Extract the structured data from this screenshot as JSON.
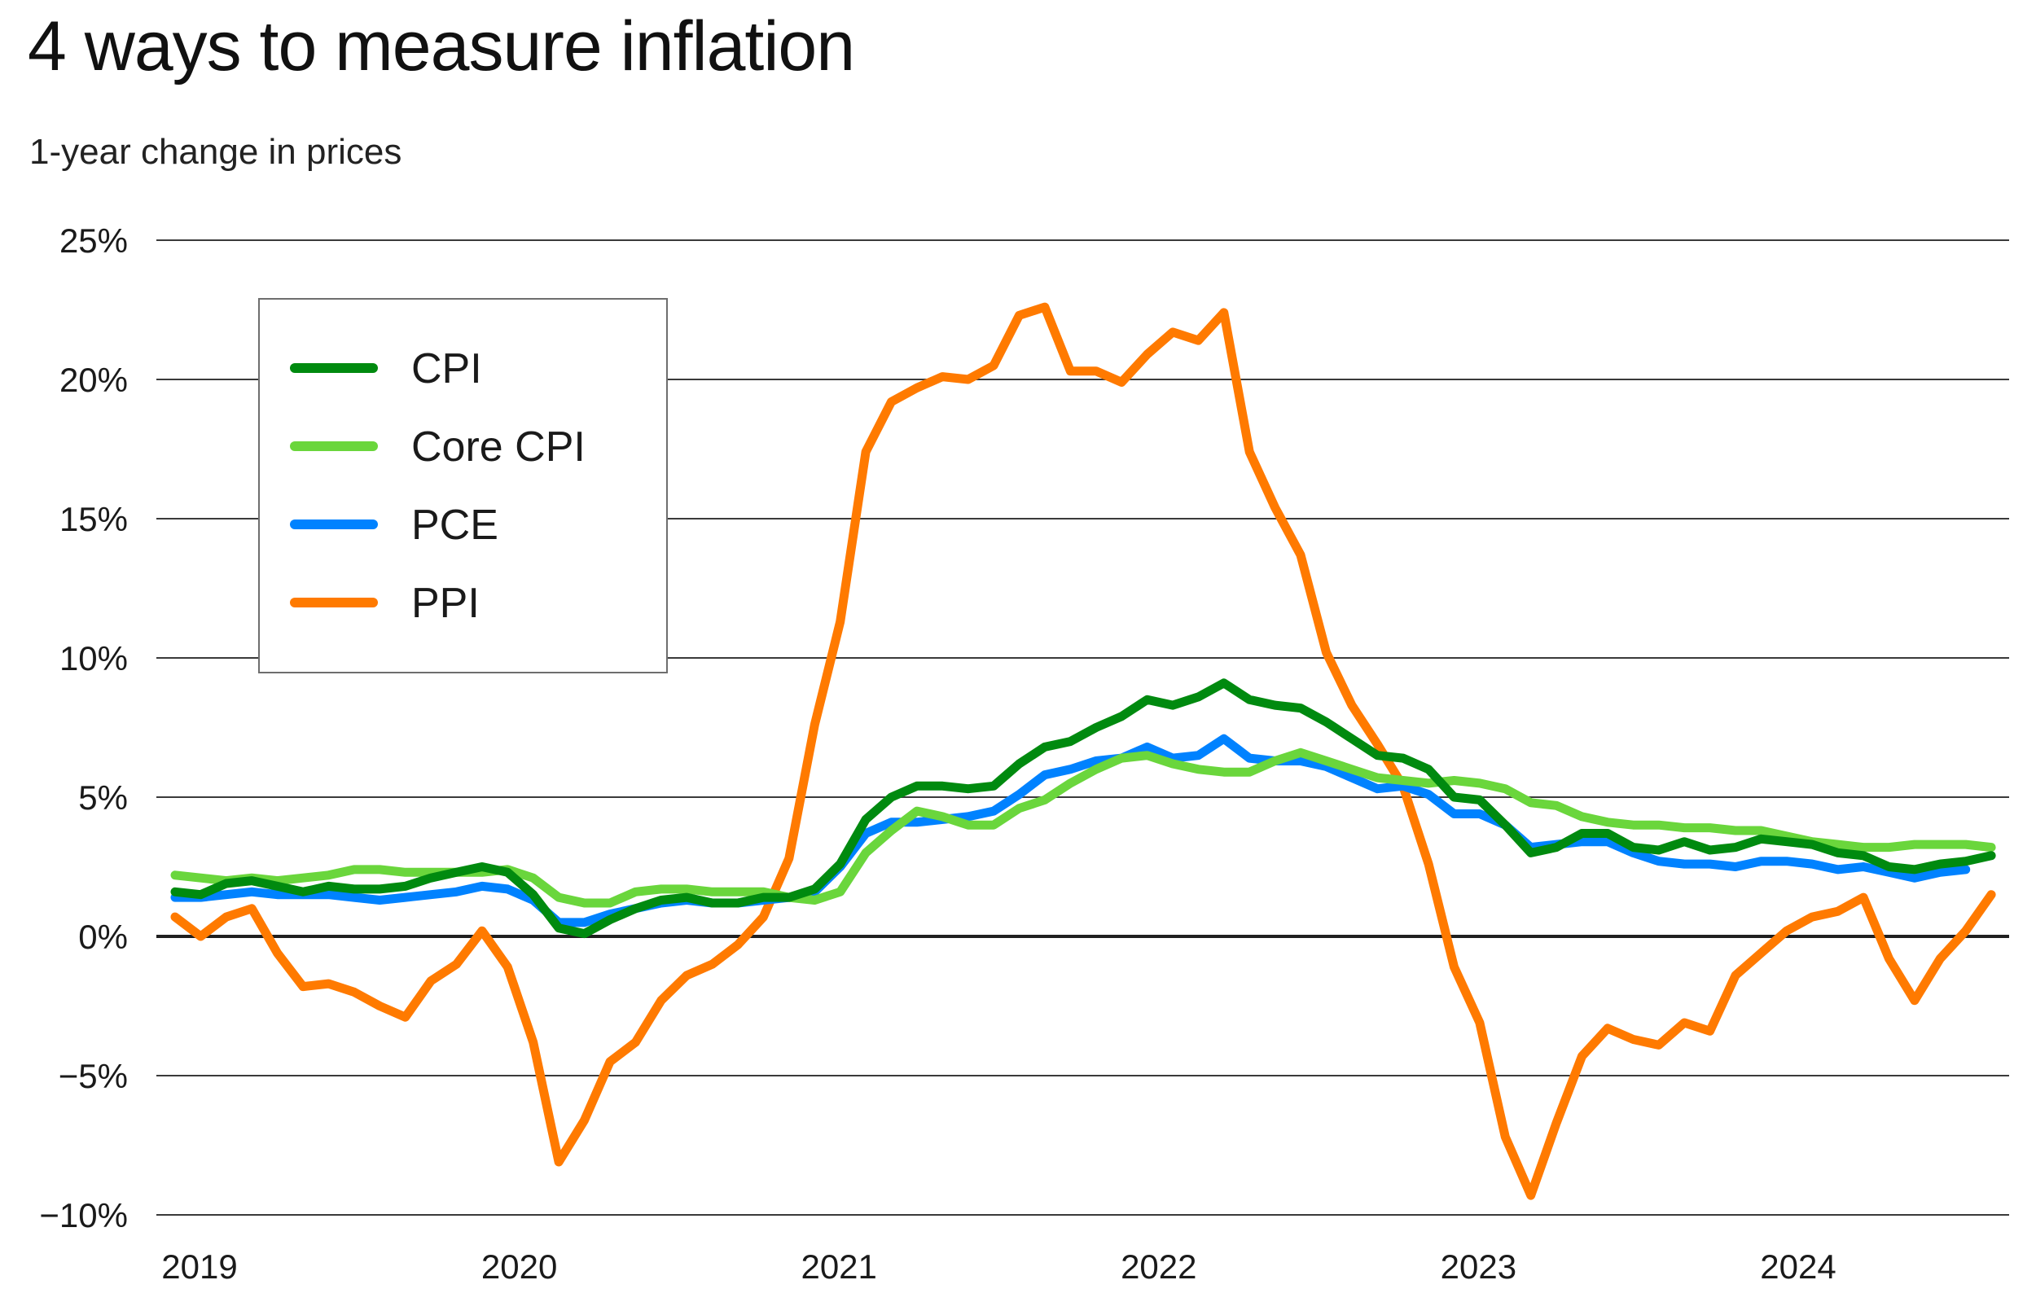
{
  "header": {
    "title": "4 ways to measure inflation",
    "subtitle": "1-year change in prices"
  },
  "chart_data": {
    "type": "line",
    "title": "4 ways to measure inflation",
    "subtitle": "1-year change in prices",
    "xlabel": "",
    "ylabel": "1-year change in prices",
    "x_start": "2019-01",
    "x_frequency": "monthly",
    "x_ticks": [
      "2019",
      "2020",
      "2021",
      "2022",
      "2023",
      "2024"
    ],
    "y_ticks": [
      "25%",
      "20%",
      "15%",
      "10%",
      "5%",
      "0%",
      "−5%",
      "−10%"
    ],
    "y_tick_values": [
      25,
      20,
      15,
      10,
      5,
      0,
      -5,
      -10
    ],
    "ylim": [
      -10,
      25
    ],
    "grid": true,
    "legend_position": "top-left",
    "series": [
      {
        "name": "CPI",
        "color": "#008a0f",
        "values": [
          1.6,
          1.5,
          1.9,
          2.0,
          1.8,
          1.6,
          1.8,
          1.7,
          1.7,
          1.8,
          2.1,
          2.3,
          2.5,
          2.3,
          1.5,
          0.3,
          0.1,
          0.6,
          1.0,
          1.3,
          1.4,
          1.2,
          1.2,
          1.4,
          1.4,
          1.7,
          2.6,
          4.2,
          5.0,
          5.4,
          5.4,
          5.3,
          5.4,
          6.2,
          6.8,
          7.0,
          7.5,
          7.9,
          8.5,
          8.3,
          8.6,
          9.1,
          8.5,
          8.3,
          8.2,
          7.7,
          7.1,
          6.5,
          6.4,
          6.0,
          5.0,
          4.9,
          4.0,
          3.0,
          3.2,
          3.7,
          3.7,
          3.2,
          3.1,
          3.4,
          3.1,
          3.2,
          3.5,
          3.4,
          3.3,
          3.0,
          2.9,
          2.5,
          2.4,
          2.6,
          2.7,
          2.9
        ]
      },
      {
        "name": "Core CPI",
        "color": "#6ad63c",
        "values": [
          2.2,
          2.1,
          2.0,
          2.1,
          2.0,
          2.1,
          2.2,
          2.4,
          2.4,
          2.3,
          2.3,
          2.3,
          2.3,
          2.4,
          2.1,
          1.4,
          1.2,
          1.2,
          1.6,
          1.7,
          1.7,
          1.6,
          1.6,
          1.6,
          1.4,
          1.3,
          1.6,
          3.0,
          3.8,
          4.5,
          4.3,
          4.0,
          4.0,
          4.6,
          4.9,
          5.5,
          6.0,
          6.4,
          6.5,
          6.2,
          6.0,
          5.9,
          5.9,
          6.3,
          6.6,
          6.3,
          6.0,
          5.7,
          5.6,
          5.5,
          5.6,
          5.5,
          5.3,
          4.8,
          4.7,
          4.3,
          4.1,
          4.0,
          4.0,
          3.9,
          3.9,
          3.8,
          3.8,
          3.6,
          3.4,
          3.3,
          3.2,
          3.2,
          3.3,
          3.3,
          3.3,
          3.2
        ]
      },
      {
        "name": "PCE",
        "color": "#0082ff",
        "values": [
          1.4,
          1.4,
          1.5,
          1.6,
          1.5,
          1.5,
          1.5,
          1.4,
          1.3,
          1.4,
          1.5,
          1.6,
          1.8,
          1.7,
          1.3,
          0.5,
          0.5,
          0.8,
          1.0,
          1.2,
          1.3,
          1.2,
          1.2,
          1.3,
          1.4,
          1.6,
          2.5,
          3.7,
          4.1,
          4.1,
          4.2,
          4.3,
          4.5,
          5.1,
          5.8,
          6.0,
          6.3,
          6.4,
          6.8,
          6.4,
          6.5,
          7.1,
          6.4,
          6.3,
          6.3,
          6.1,
          5.7,
          5.3,
          5.4,
          5.1,
          4.4,
          4.4,
          4.0,
          3.2,
          3.3,
          3.4,
          3.4,
          3.0,
          2.7,
          2.6,
          2.6,
          2.5,
          2.7,
          2.7,
          2.6,
          2.4,
          2.5,
          2.3,
          2.1,
          2.3,
          2.4
        ]
      },
      {
        "name": "PPI",
        "color": "#ff7a00",
        "values": [
          0.7,
          0.0,
          0.7,
          1.0,
          -0.6,
          -1.8,
          -1.7,
          -2.0,
          -2.5,
          -2.9,
          -1.6,
          -1.0,
          0.2,
          -1.1,
          -3.8,
          -8.1,
          -6.6,
          -4.5,
          -3.8,
          -2.3,
          -1.4,
          -1.0,
          -0.3,
          0.7,
          2.8,
          7.6,
          11.3,
          17.4,
          19.2,
          19.7,
          20.1,
          20.0,
          20.5,
          22.3,
          22.6,
          20.3,
          20.3,
          19.9,
          20.9,
          21.7,
          21.4,
          22.4,
          17.4,
          15.4,
          13.7,
          10.2,
          8.3,
          6.9,
          5.4,
          2.6,
          -1.1,
          -3.1,
          -7.2,
          -9.3,
          -6.7,
          -4.3,
          -3.3,
          -3.7,
          -3.9,
          -3.1,
          -3.4,
          -1.4,
          -0.6,
          0.2,
          0.7,
          0.9,
          1.4,
          -0.8,
          -2.3,
          -0.8,
          0.2,
          1.5
        ]
      }
    ]
  }
}
